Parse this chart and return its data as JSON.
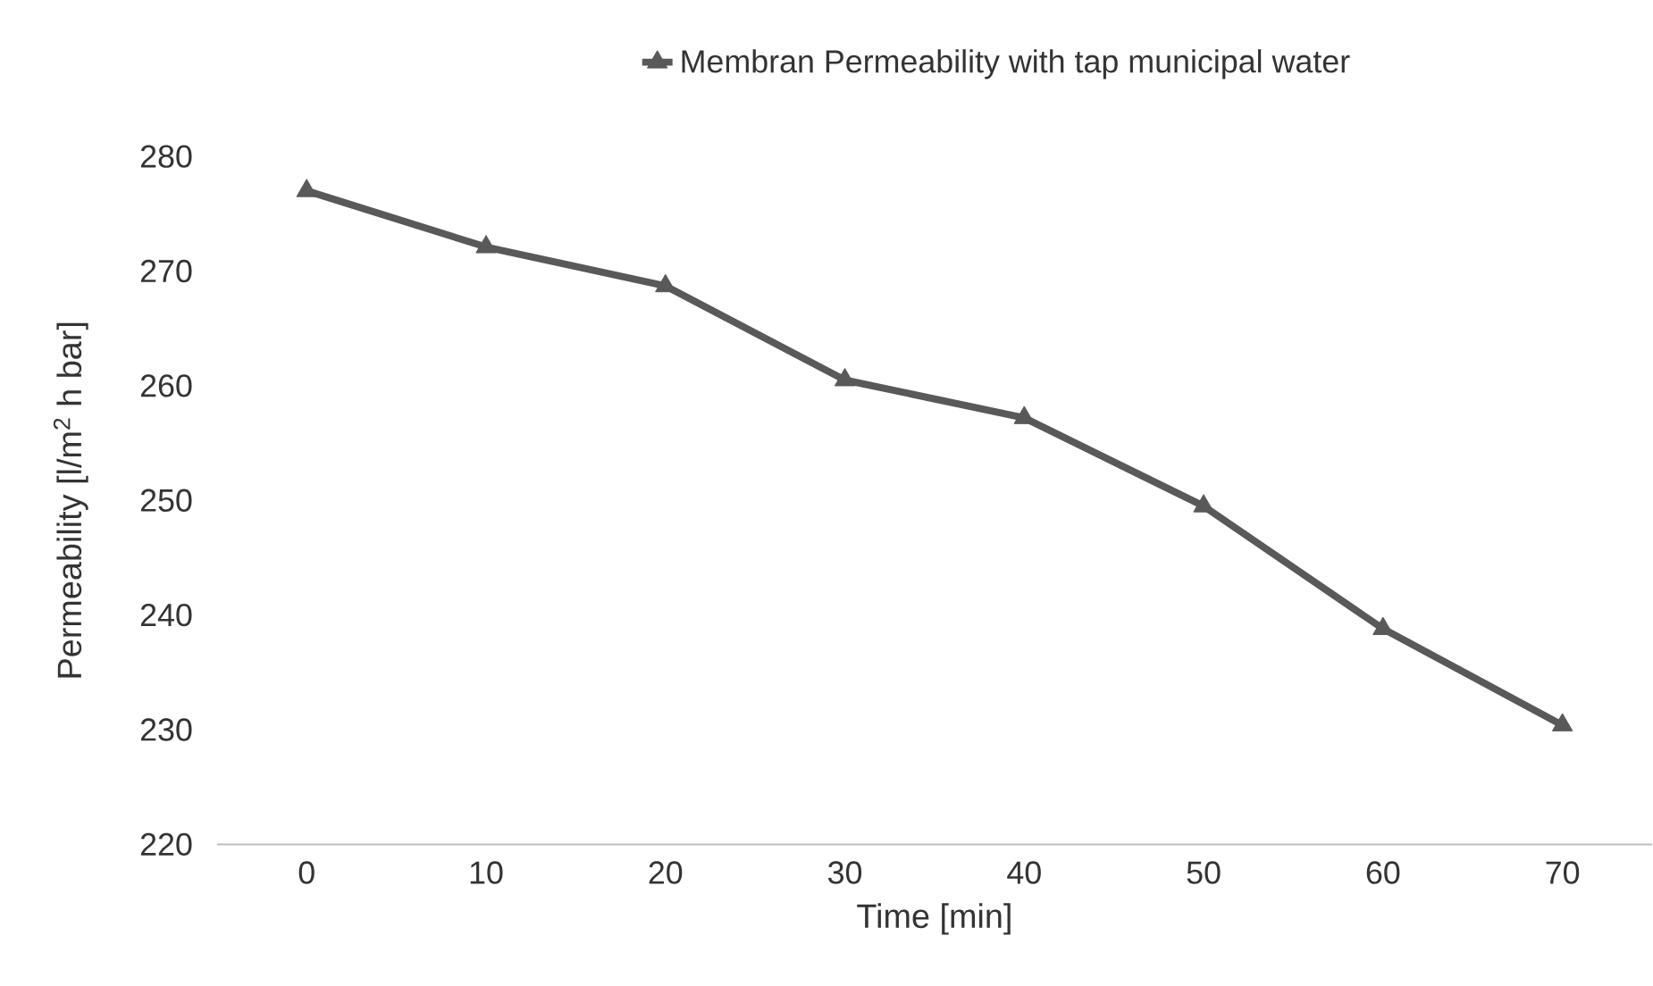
{
  "chart_data": {
    "type": "line",
    "xlabel": "Time [min]",
    "ylabel": "Permeability [l/m$^{2}$ h bar]",
    "categories": [
      "0",
      "10",
      "20",
      "30",
      "40",
      "50",
      "60",
      "70"
    ],
    "series": [
      {
        "name": "Membran Permeability with tap municipal water",
        "color": "#595959",
        "values": [
          277,
          272.1,
          268.7,
          260.5,
          257.2,
          249.5,
          238.8,
          230.4
        ]
      }
    ],
    "ylim": [
      220,
      280
    ],
    "yticks": [
      220,
      230,
      240,
      250,
      260,
      270,
      280
    ],
    "grid": false,
    "legend": "top",
    "marker": "triangle",
    "line_style": "solid"
  }
}
